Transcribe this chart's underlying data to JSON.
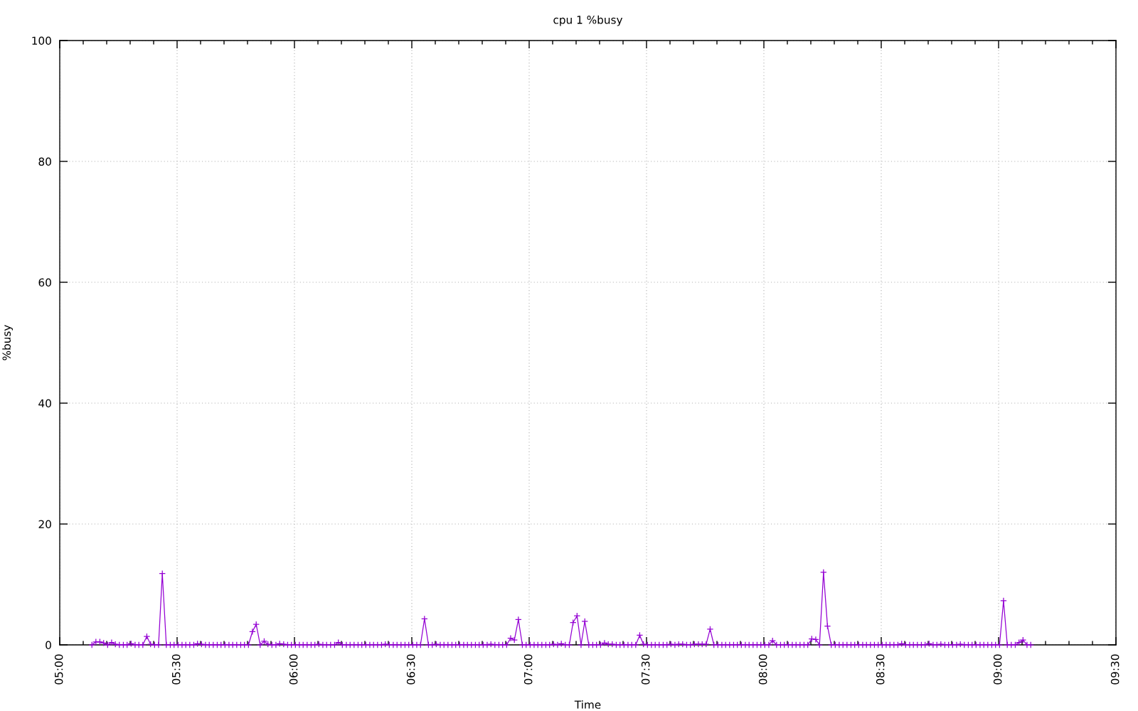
{
  "chart_data": {
    "type": "line",
    "title": "cpu 1 %busy",
    "xlabel": "Time",
    "ylabel": "%busy",
    "color": "#9400d3",
    "marker": "cross",
    "line_style": "solid",
    "grid": true,
    "xlim": [
      5,
      9.5
    ],
    "ylim": [
      0,
      100
    ],
    "yticks": [
      0,
      20,
      40,
      60,
      80,
      100
    ],
    "xticks": [
      {
        "value": 5,
        "label": "05:00"
      },
      {
        "value": 5.1,
        "label": null
      },
      {
        "value": 5.2,
        "label": null
      },
      {
        "value": 5.3,
        "label": null
      },
      {
        "value": 5.4,
        "label": null
      },
      {
        "value": 5.5,
        "label": "05:30"
      },
      {
        "value": 5.6,
        "label": null
      },
      {
        "value": 5.7,
        "label": null
      },
      {
        "value": 5.8,
        "label": null
      },
      {
        "value": 5.9,
        "label": null
      },
      {
        "value": 6,
        "label": "06:00"
      },
      {
        "value": 6.1,
        "label": null
      },
      {
        "value": 6.2,
        "label": null
      },
      {
        "value": 6.3,
        "label": null
      },
      {
        "value": 6.4,
        "label": null
      },
      {
        "value": 6.5,
        "label": "06:30"
      },
      {
        "value": 6.6,
        "label": null
      },
      {
        "value": 6.7,
        "label": null
      },
      {
        "value": 6.8,
        "label": null
      },
      {
        "value": 6.9,
        "label": null
      },
      {
        "value": 7,
        "label": "07:00"
      },
      {
        "value": 7.1,
        "label": null
      },
      {
        "value": 7.2,
        "label": null
      },
      {
        "value": 7.3,
        "label": null
      },
      {
        "value": 7.4,
        "label": null
      },
      {
        "value": 7.5,
        "label": "07:30"
      },
      {
        "value": 7.6,
        "label": null
      },
      {
        "value": 7.7,
        "label": null
      },
      {
        "value": 7.8,
        "label": null
      },
      {
        "value": 7.9,
        "label": null
      },
      {
        "value": 8,
        "label": "08:00"
      },
      {
        "value": 8.1,
        "label": null
      },
      {
        "value": 8.2,
        "label": null
      },
      {
        "value": 8.3,
        "label": null
      },
      {
        "value": 8.4,
        "label": null
      },
      {
        "value": 8.5,
        "label": "08:30"
      },
      {
        "value": 8.6,
        "label": null
      },
      {
        "value": 8.7,
        "label": null
      },
      {
        "value": 8.8,
        "label": null
      },
      {
        "value": 8.9,
        "label": null
      },
      {
        "value": 9,
        "label": "09:00"
      },
      {
        "value": 9.1,
        "label": null
      },
      {
        "value": 9.2,
        "label": null
      },
      {
        "value": 9.3,
        "label": null
      },
      {
        "value": 9.4,
        "label": null
      },
      {
        "value": 9.5,
        "label": "09:30"
      }
    ],
    "x": [
      5.137,
      5.154,
      5.171,
      5.187,
      5.204,
      5.221,
      5.237,
      5.254,
      5.271,
      5.287,
      5.304,
      5.321,
      5.337,
      5.354,
      5.371,
      5.387,
      5.404,
      5.421,
      5.437,
      5.454,
      5.471,
      5.487,
      5.504,
      5.521,
      5.537,
      5.554,
      5.571,
      5.587,
      5.604,
      5.621,
      5.637,
      5.654,
      5.671,
      5.687,
      5.704,
      5.721,
      5.737,
      5.754,
      5.771,
      5.787,
      5.804,
      5.821,
      5.837,
      5.854,
      5.871,
      5.887,
      5.904,
      5.921,
      5.937,
      5.954,
      5.971,
      5.987,
      6.004,
      6.021,
      6.037,
      6.054,
      6.071,
      6.087,
      6.104,
      6.121,
      6.137,
      6.154,
      6.171,
      6.187,
      6.204,
      6.221,
      6.237,
      6.254,
      6.271,
      6.287,
      6.304,
      6.321,
      6.337,
      6.354,
      6.371,
      6.387,
      6.404,
      6.421,
      6.437,
      6.454,
      6.471,
      6.487,
      6.504,
      6.521,
      6.537,
      6.554,
      6.571,
      6.587,
      6.604,
      6.621,
      6.637,
      6.654,
      6.671,
      6.687,
      6.704,
      6.721,
      6.737,
      6.754,
      6.771,
      6.787,
      6.804,
      6.821,
      6.837,
      6.854,
      6.871,
      6.887,
      6.904,
      6.921,
      6.937,
      6.954,
      6.971,
      6.987,
      7.004,
      7.021,
      7.037,
      7.054,
      7.071,
      7.087,
      7.104,
      7.121,
      7.137,
      7.154,
      7.171,
      7.187,
      7.204,
      7.221,
      7.237,
      7.254,
      7.271,
      7.287,
      7.304,
      7.321,
      7.337,
      7.354,
      7.371,
      7.387,
      7.404,
      7.421,
      7.437,
      7.454,
      7.471,
      7.487,
      7.504,
      7.521,
      7.537,
      7.554,
      7.571,
      7.587,
      7.604,
      7.621,
      7.637,
      7.654,
      7.671,
      7.687,
      7.704,
      7.721,
      7.737,
      7.754,
      7.771,
      7.787,
      7.804,
      7.821,
      7.837,
      7.854,
      7.871,
      7.887,
      7.904,
      7.921,
      7.937,
      7.954,
      7.971,
      7.987,
      8.004,
      8.021,
      8.037,
      8.054,
      8.071,
      8.087,
      8.104,
      8.121,
      8.137,
      8.154,
      8.171,
      8.187,
      8.204,
      8.221,
      8.237,
      8.254,
      8.271,
      8.287,
      8.304,
      8.321,
      8.337,
      8.354,
      8.371,
      8.387,
      8.404,
      8.421,
      8.437,
      8.454,
      8.471,
      8.487,
      8.504,
      8.521,
      8.537,
      8.554,
      8.571,
      8.587,
      8.604,
      8.621,
      8.637,
      8.654,
      8.671,
      8.687,
      8.704,
      8.721,
      8.737,
      8.754,
      8.771,
      8.787,
      8.804,
      8.821,
      8.837,
      8.854,
      8.871,
      8.887,
      8.904,
      8.921,
      8.937,
      8.954,
      8.971,
      8.987,
      9.004,
      9.021,
      9.037,
      9.054,
      9.071,
      9.087,
      9.104,
      9.121,
      9.137
    ],
    "values": [
      0,
      0.5,
      0.5,
      0.3,
      0,
      0.4,
      0.1,
      0,
      0,
      0,
      0.2,
      0,
      0,
      0,
      1.4,
      0.1,
      0,
      0,
      11.8,
      0,
      0,
      0,
      0,
      0,
      0,
      0,
      0,
      0.2,
      0.1,
      0,
      0,
      0,
      0,
      0,
      0,
      0,
      0,
      0,
      0,
      0,
      0,
      2.2,
      3.4,
      0,
      0.6,
      0.1,
      0,
      0,
      0.2,
      0.1,
      0,
      0,
      0,
      0,
      0,
      0,
      0,
      0,
      0.1,
      0,
      0,
      0,
      0,
      0.4,
      0,
      0,
      0,
      0,
      0,
      0,
      0,
      0,
      0,
      0,
      0,
      0.1,
      0,
      0,
      0,
      0,
      0,
      0,
      0,
      0,
      0,
      4.3,
      0,
      0,
      0.1,
      0,
      0,
      0,
      0,
      0,
      0,
      0,
      0,
      0,
      0,
      0,
      0,
      0,
      0.1,
      0,
      0,
      0,
      0,
      1.1,
      0.8,
      4.2,
      0,
      0,
      0,
      0,
      0,
      0,
      0,
      0,
      0.1,
      0,
      0.2,
      0,
      0,
      3.7,
      4.8,
      0,
      3.9,
      0,
      0,
      0,
      0,
      0.3,
      0.1,
      0.1,
      0,
      0,
      0,
      0,
      0,
      0,
      1.6,
      0.1,
      0,
      0,
      0,
      0,
      0,
      0,
      0.1,
      0,
      0.1,
      0.1,
      0,
      0,
      0.1,
      0.1,
      0.1,
      0.1,
      2.6,
      0,
      0,
      0,
      0,
      0,
      0,
      0,
      0,
      0,
      0,
      0,
      0,
      0,
      0,
      0,
      0.7,
      0,
      0,
      0,
      0,
      0,
      0,
      0,
      0,
      0,
      1,
      0.9,
      0,
      12,
      3.1,
      0,
      0,
      0,
      0,
      0,
      0,
      0,
      0,
      0,
      0,
      0,
      0,
      0,
      0,
      0,
      0,
      0,
      0,
      0.2,
      0,
      0,
      0,
      0,
      0,
      0,
      0.2,
      0,
      0,
      0.1,
      0,
      0,
      0,
      0,
      0.1,
      0,
      0,
      0,
      0,
      0,
      0,
      0,
      0,
      0,
      0,
      7.3,
      0,
      0,
      0,
      0.4,
      0.8,
      0,
      0
    ]
  }
}
